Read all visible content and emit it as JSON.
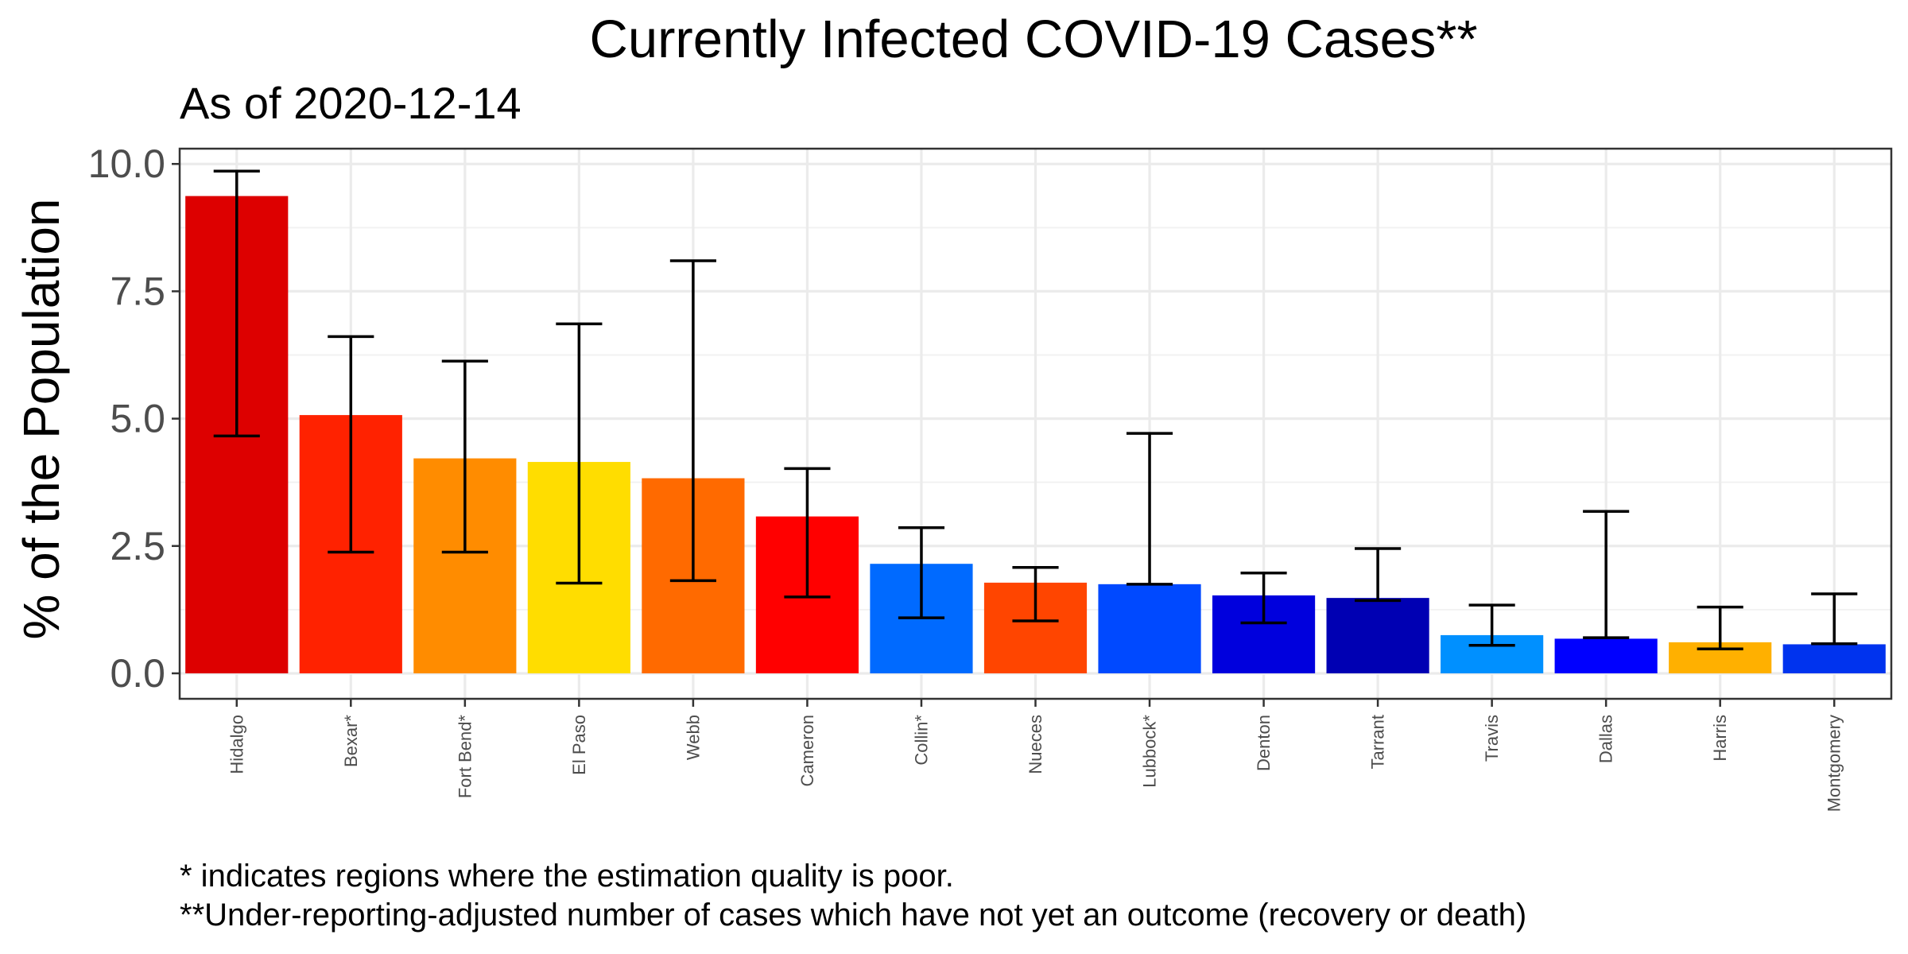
{
  "chart_data": {
    "type": "bar",
    "title": "Currently Infected COVID-19 Cases**",
    "subtitle": "As of 2020-12-14",
    "xlabel": "",
    "ylabel": "% of the Population",
    "ylim": [
      -0.5,
      10.3
    ],
    "yticks": [
      "0.0",
      "2.5",
      "5.0",
      "7.5",
      "10.0"
    ],
    "ytick_values": [
      0,
      2.5,
      5,
      7.5,
      10
    ],
    "grid": true,
    "legend": "none",
    "categories": [
      "Hidalgo",
      "Bexar*",
      "Fort Bend*",
      "El Paso",
      "Webb",
      "Cameron",
      "Collin*",
      "Nueces",
      "Lubbock*",
      "Denton",
      "Tarrant",
      "Travis",
      "Dallas",
      "Harris",
      "Montgomery"
    ],
    "values": [
      9.37,
      5.07,
      4.22,
      4.15,
      3.83,
      3.08,
      2.15,
      1.78,
      1.75,
      1.53,
      1.48,
      0.75,
      0.68,
      0.61,
      0.57
    ],
    "error_low": [
      4.66,
      2.38,
      2.38,
      1.77,
      1.82,
      1.5,
      1.09,
      1.03,
      1.75,
      0.99,
      1.43,
      0.55,
      0.7,
      0.48,
      0.58
    ],
    "error_high": [
      9.86,
      6.61,
      6.13,
      6.86,
      8.1,
      4.02,
      2.86,
      2.08,
      4.71,
      1.97,
      2.45,
      1.34,
      3.18,
      1.3,
      1.56
    ],
    "colors": [
      "#dd0000",
      "#ff2200",
      "#ff8c00",
      "#ffdd00",
      "#ff6a00",
      "#ff0000",
      "#006aff",
      "#ff4500",
      "#0049ff",
      "#0000dd",
      "#0000b3",
      "#0090ff",
      "#0000ff",
      "#ffb000",
      "#0033ee"
    ]
  },
  "footnotes": [
    "* indicates regions where the estimation quality is poor.",
    "**Under-reporting-adjusted number of cases which have not yet an outcome (recovery or death)"
  ]
}
